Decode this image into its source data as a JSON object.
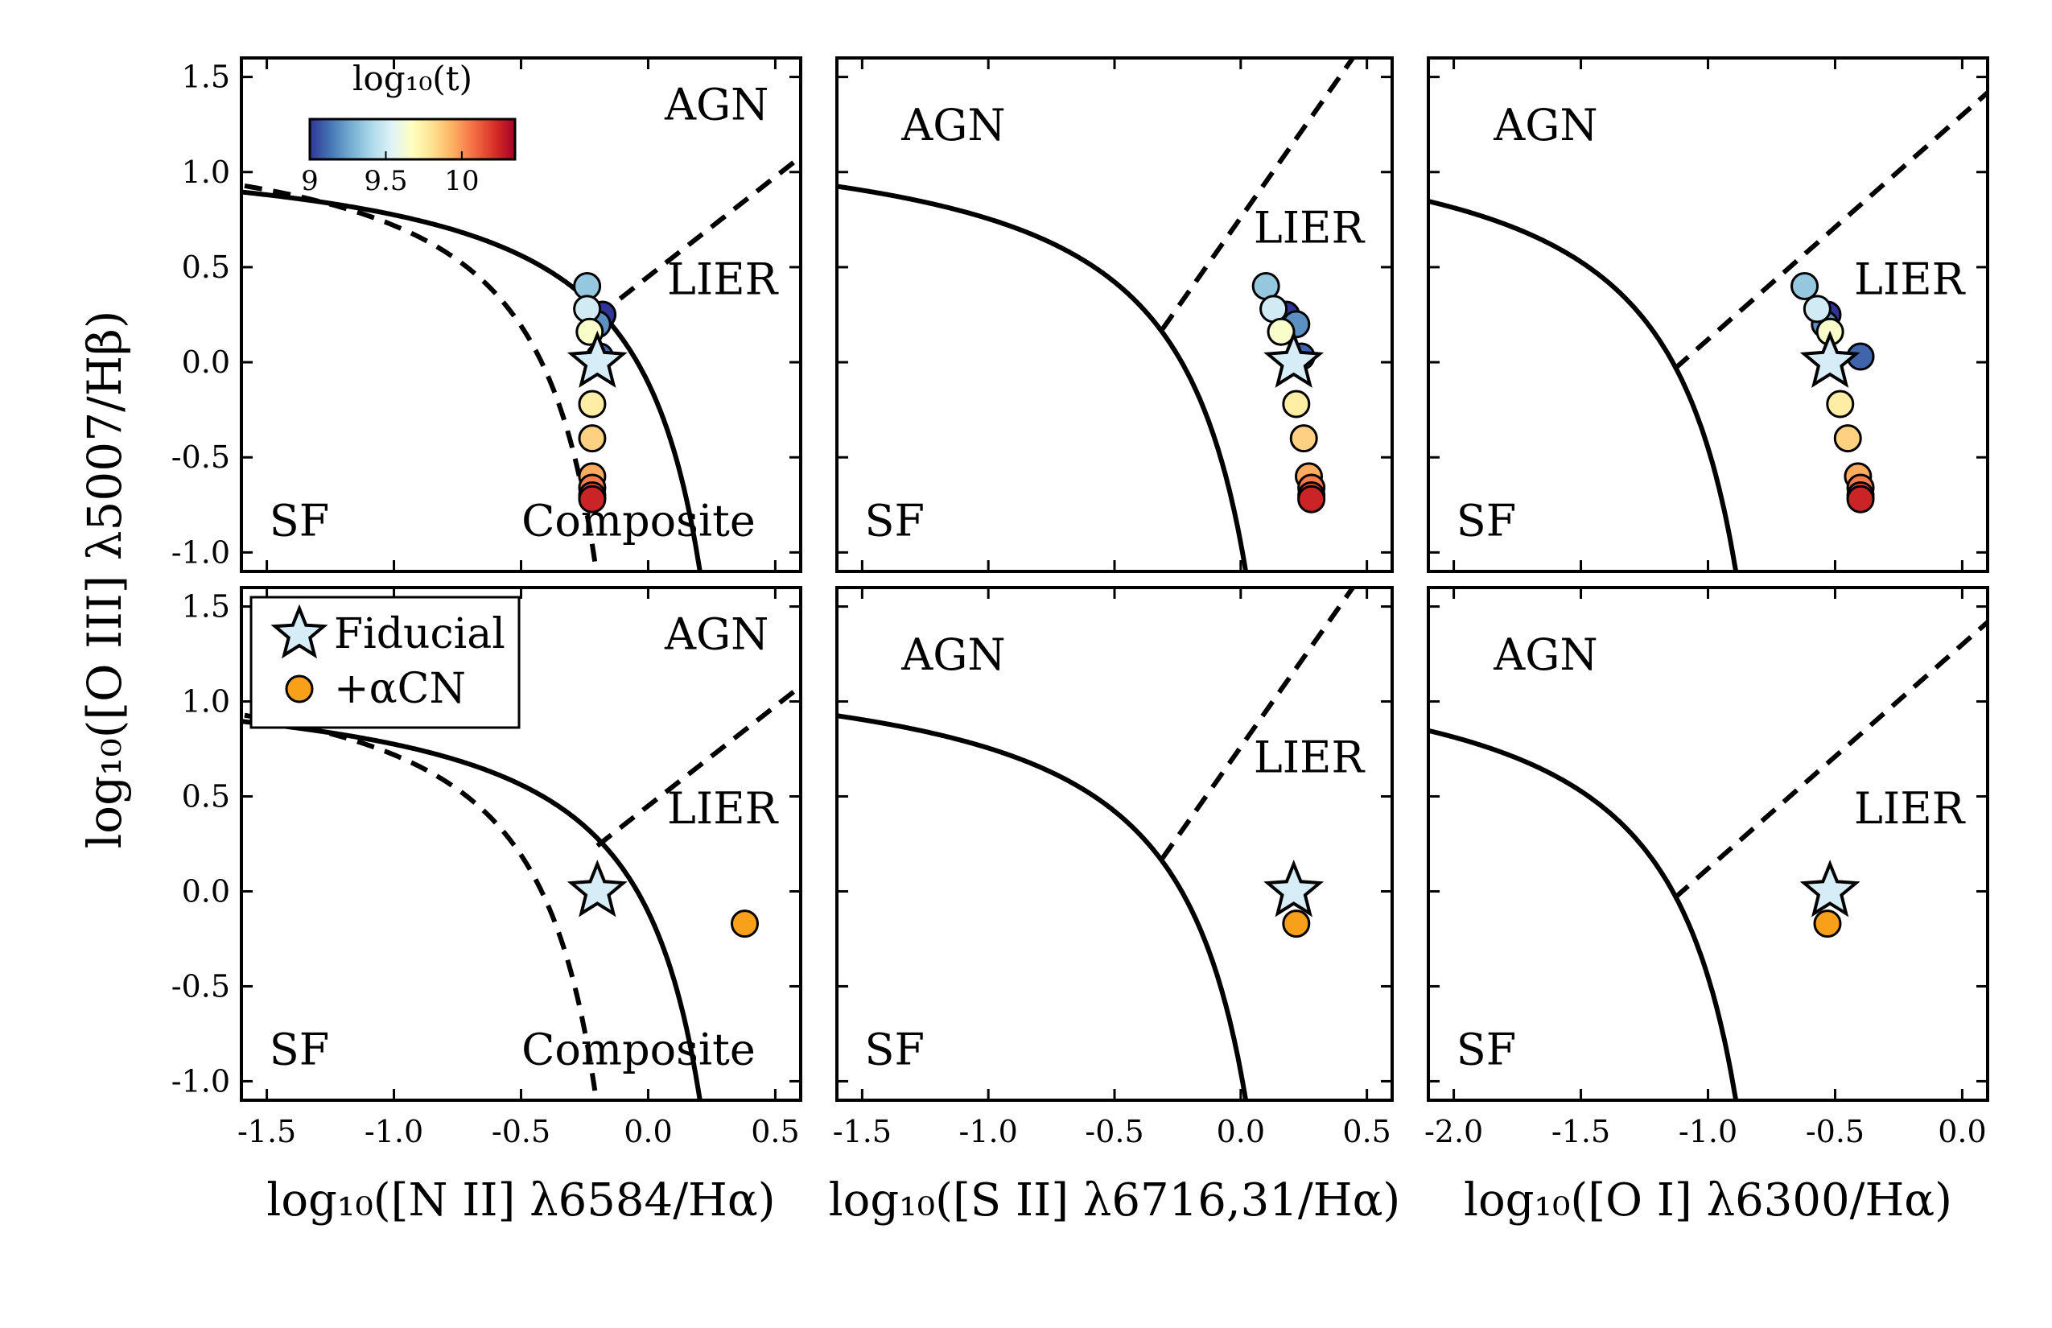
{
  "chart_data": {
    "type": "scatter",
    "y_axis_label": "log₁₀([O III] λ5007/Hβ)",
    "ylim": [
      -1.1,
      1.6
    ],
    "yticks": [
      1.5,
      1.0,
      0.5,
      0.0,
      -0.5,
      -1.0
    ],
    "ytick_labels": [
      "1.5",
      "1.0",
      "0.5",
      "0.0",
      "-0.5",
      "-1.0"
    ],
    "columns": [
      {
        "xlabel": "log₁₀([N II] λ6584/Hα)",
        "xlim": [
          -1.6,
          0.6
        ],
        "xticks": [
          -1.5,
          -1.0,
          -0.5,
          0.0,
          0.5
        ],
        "xtick_labels": [
          "-1.5",
          "-1.0",
          "-0.5",
          "0.0",
          "0.5"
        ]
      },
      {
        "xlabel": "log₁₀([S II] λ6716,31/Hα)",
        "xlim": [
          -1.6,
          0.6
        ],
        "xticks": [
          -1.5,
          -1.0,
          -0.5,
          0.0,
          0.5
        ],
        "xtick_labels": [
          "-1.5",
          "-1.0",
          "-0.5",
          "0.0",
          "0.5"
        ]
      },
      {
        "xlabel": "log₁₀([O I] λ6300/Hα)",
        "xlim": [
          -2.1,
          0.1
        ],
        "xticks": [
          -2.0,
          -1.5,
          -1.0,
          -0.5,
          0.0
        ],
        "xtick_labels": [
          "-2.0",
          "-1.5",
          "-1.0",
          "-0.5",
          "0.0"
        ]
      }
    ],
    "region_labels": {
      "nii": [
        "AGN",
        "LIER",
        "SF",
        "Composite"
      ],
      "sii": [
        "AGN",
        "LIER",
        "SF"
      ],
      "oi": [
        "AGN",
        "LIER",
        "SF"
      ]
    },
    "colorbar": {
      "label": "log₁₀(t)",
      "range": [
        9.0,
        10.35
      ],
      "ticks": [
        9.0,
        9.5,
        10.0
      ],
      "tick_labels": [
        "9",
        "9.5",
        "10"
      ],
      "colormap": [
        "#313695",
        "#4575b4",
        "#74add1",
        "#abd9e9",
        "#e0f3f8",
        "#ffffbf",
        "#fee090",
        "#fdae61",
        "#f46d43",
        "#d73027",
        "#a50026"
      ]
    },
    "legend": {
      "location": "upper-left of bottom-left panel",
      "entries": [
        {
          "label": "Fiducial",
          "marker": "star",
          "color": "#d6ecf6"
        },
        {
          "label": "+αCN",
          "marker": "circle",
          "color": "#f9a01b"
        }
      ]
    },
    "time_series": {
      "log_t": [
        9.0,
        9.1,
        9.2,
        9.35,
        9.5,
        9.65,
        9.75,
        9.85,
        9.95,
        10.05,
        10.15,
        10.25
      ],
      "y": [
        0.25,
        0.03,
        0.2,
        0.4,
        0.28,
        0.16,
        -0.22,
        -0.4,
        -0.6,
        -0.66,
        -0.7,
        -0.72
      ],
      "x_nii": [
        -0.18,
        -0.19,
        -0.2,
        -0.24,
        -0.24,
        -0.23,
        -0.22,
        -0.22,
        -0.22,
        -0.22,
        -0.22,
        -0.22
      ],
      "x_sii": [
        0.18,
        0.24,
        0.22,
        0.1,
        0.13,
        0.16,
        0.22,
        0.25,
        0.27,
        0.28,
        0.28,
        0.28
      ],
      "x_oi": [
        -0.53,
        -0.4,
        -0.54,
        -0.62,
        -0.57,
        -0.52,
        -0.48,
        -0.45,
        -0.41,
        -0.4,
        -0.4,
        -0.4
      ]
    },
    "fiducial_star": {
      "x_nii": -0.2,
      "x_sii": 0.21,
      "x_oi": -0.52,
      "y": 0.0
    },
    "alphaCN_point": {
      "x_nii": 0.38,
      "x_sii": 0.22,
      "x_oi": -0.53,
      "y": -0.17
    }
  }
}
